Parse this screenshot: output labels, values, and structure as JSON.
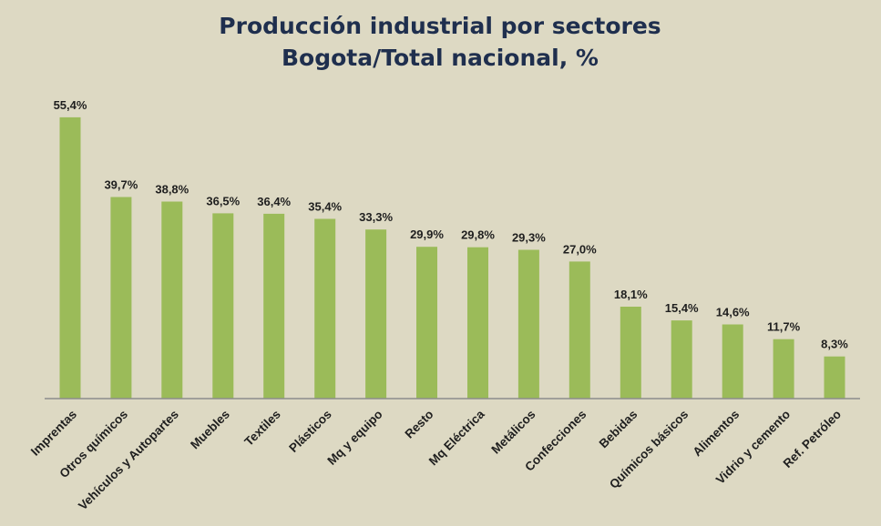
{
  "chart_data": {
    "type": "bar",
    "title": [
      "Producción industrial por sectores",
      "Bogota/Total nacional, %"
    ],
    "xlabel": "",
    "ylabel": "",
    "ylim": [
      0,
      57
    ],
    "grid": false,
    "legend": "none",
    "bar_color": "#9bbb59",
    "axis_color": "#8c8c8c",
    "categories": [
      "Imprentas",
      "Otros químicos",
      "Vehículos y Autopartes",
      "Muebles",
      "Textiles",
      "Plásticos",
      "Mq y equipo",
      "Resto",
      "Mq Eléctrica",
      "Metálicos",
      "Confecciones",
      "Bebidas",
      "Químicos básicos",
      "Alimentos",
      "Vidrio y cemento",
      "Ref. Petróleo"
    ],
    "values": [
      55.4,
      39.7,
      38.8,
      36.5,
      36.4,
      35.4,
      33.3,
      29.9,
      29.8,
      29.3,
      27.0,
      18.1,
      15.4,
      14.6,
      11.7,
      8.3
    ],
    "value_labels": [
      "55,4%",
      "39,7%",
      "38,8%",
      "36,5%",
      "36,4%",
      "35,4%",
      "33,3%",
      "29,9%",
      "29,8%",
      "29,3%",
      "27,0%",
      "18,1%",
      "15,4%",
      "14,6%",
      "11,7%",
      "8,3%"
    ]
  }
}
